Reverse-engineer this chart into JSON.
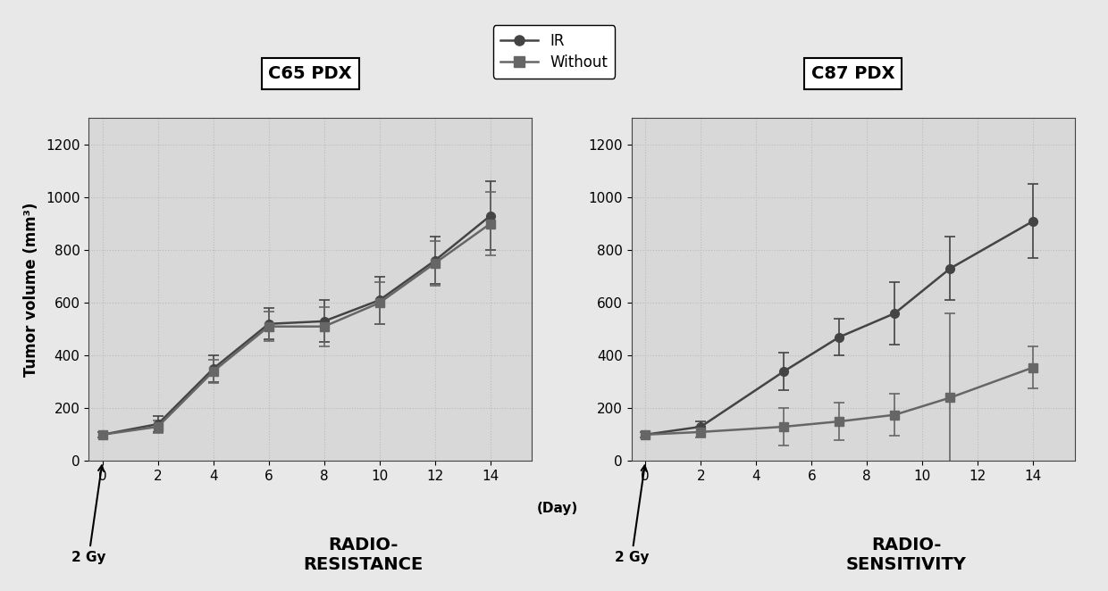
{
  "panel1_title": "C65 PDX",
  "panel2_title": "C87 PDX",
  "panel1_xlabel": "RADIO-\nRESISTANCE",
  "panel2_xlabel": "RADIO-\nSENSITIVITY",
  "ylabel": "Tumor volume (mm³)",
  "legend_labels": [
    "IR",
    "Without"
  ],
  "c65_days": [
    0,
    2,
    4,
    6,
    8,
    10,
    12,
    14
  ],
  "c65_IR_mean": [
    100,
    140,
    350,
    520,
    530,
    610,
    760,
    930
  ],
  "c65_IR_err": [
    10,
    30,
    50,
    60,
    80,
    90,
    90,
    130
  ],
  "c65_Without_mean": [
    100,
    130,
    340,
    510,
    510,
    600,
    750,
    900
  ],
  "c65_Without_err": [
    10,
    25,
    45,
    55,
    75,
    80,
    85,
    120
  ],
  "c87_days": [
    0,
    2,
    5,
    7,
    9,
    11,
    14
  ],
  "c87_IR_mean": [
    100,
    130,
    340,
    470,
    560,
    730,
    910
  ],
  "c87_IR_err": [
    10,
    20,
    70,
    70,
    120,
    120,
    140
  ],
  "c87_Without_mean": [
    100,
    110,
    130,
    150,
    175,
    240,
    355
  ],
  "c87_Without_err": [
    10,
    20,
    70,
    70,
    80,
    320,
    80
  ],
  "ylim": [
    0,
    1300
  ],
  "yticks": [
    0,
    200,
    400,
    600,
    800,
    1000,
    1200
  ],
  "c65_xticks": [
    0,
    2,
    4,
    6,
    8,
    10,
    12,
    14
  ],
  "c87_xticks": [
    0,
    2,
    4,
    6,
    8,
    10,
    12,
    14
  ],
  "xlim": [
    -0.5,
    15.5
  ],
  "line_color_IR": "#444444",
  "line_color_Without": "#666666",
  "marker_style_IR": "o",
  "marker_style_Without": "s",
  "marker_size": 7,
  "line_width": 1.8,
  "bg_color": "#e8e8e8",
  "plot_bg_color": "#d8d8d8",
  "grid_color": "#bbbbbb",
  "annotation_text": "2 Gy"
}
